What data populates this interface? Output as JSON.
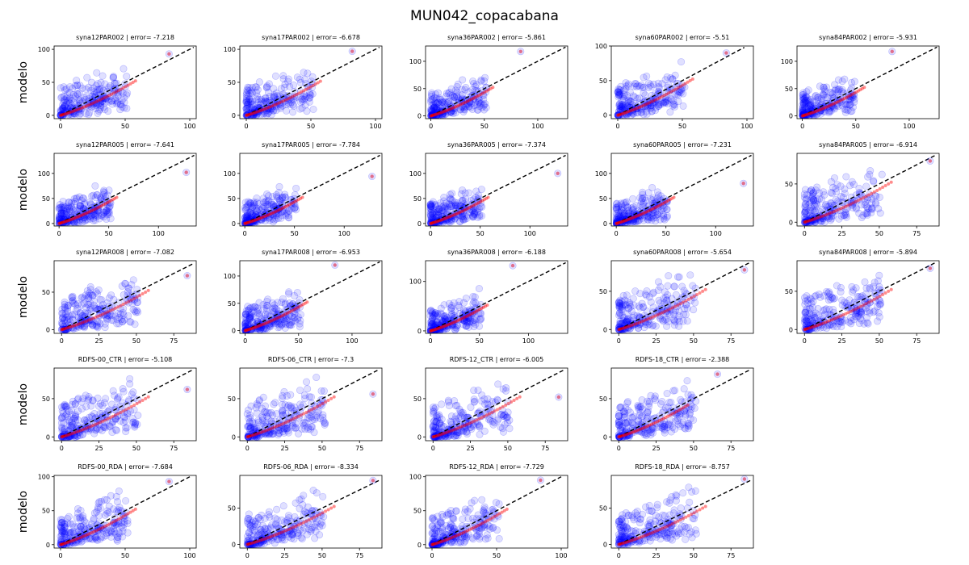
{
  "figure": {
    "title": "MUN042_copacabana",
    "ylabel": "modelo"
  },
  "colors": {
    "scatter": "#0000ff",
    "qq": "#ff0000",
    "identity": "#000000"
  },
  "chart_data": [
    {
      "type": "scatter",
      "title": "syna12PAR002 | error= -7.218",
      "xlim": [
        -5,
        105
      ],
      "ylim": [
        -5,
        105
      ],
      "xticks": [
        0,
        50,
        100
      ],
      "yticks": [
        0,
        50,
        100
      ],
      "outlier": [
        84,
        93
      ],
      "ylabel": "modelo"
    },
    {
      "type": "scatter",
      "title": "syna17PAR002 | error= -6.678",
      "xlim": [
        -5,
        105
      ],
      "ylim": [
        -5,
        105
      ],
      "xticks": [
        0,
        50,
        100
      ],
      "yticks": [
        0,
        50,
        100
      ],
      "outlier": [
        82,
        97
      ]
    },
    {
      "type": "scatter",
      "title": "syna36PAR002 | error= -5.861",
      "xlim": [
        -5,
        128
      ],
      "ylim": [
        -5,
        128
      ],
      "xticks": [
        0,
        50,
        100
      ],
      "yticks": [
        0,
        50,
        100
      ],
      "outlier": [
        84,
        118
      ]
    },
    {
      "type": "scatter",
      "title": "syna60PAR002 | error= -5.51",
      "xlim": [
        -5,
        105
      ],
      "ylim": [
        -5,
        100
      ],
      "xticks": [
        0,
        50,
        100
      ],
      "yticks": [
        0,
        50,
        100
      ],
      "outlier": [
        84,
        90
      ]
    },
    {
      "type": "scatter",
      "title": "syna84PAR002 | error= -5.931",
      "xlim": [
        -5,
        128
      ],
      "ylim": [
        -5,
        128
      ],
      "xticks": [
        0,
        50,
        100
      ],
      "yticks": [
        0,
        50,
        100
      ],
      "outlier": [
        84,
        118
      ]
    },
    {
      "type": "scatter",
      "title": "syna12PAR005 | error= -7.641",
      "xlim": [
        -5,
        138
      ],
      "ylim": [
        -5,
        140
      ],
      "xticks": [
        0,
        50,
        100
      ],
      "yticks": [
        0,
        50,
        100
      ],
      "outlier": [
        128,
        102
      ],
      "ylabel": "modelo"
    },
    {
      "type": "scatter",
      "title": "syna17PAR005 | error= -7.784",
      "xlim": [
        -5,
        138
      ],
      "ylim": [
        -5,
        140
      ],
      "xticks": [
        0,
        50,
        100
      ],
      "yticks": [
        0,
        50,
        100
      ],
      "outlier": [
        128,
        94
      ]
    },
    {
      "type": "scatter",
      "title": "syna36PAR005 | error= -7.374",
      "xlim": [
        -5,
        138
      ],
      "ylim": [
        -5,
        140
      ],
      "xticks": [
        0,
        50,
        100
      ],
      "yticks": [
        0,
        50,
        100
      ],
      "outlier": [
        128,
        100
      ]
    },
    {
      "type": "scatter",
      "title": "syna60PAR005 | error= -7.231",
      "xlim": [
        -5,
        138
      ],
      "ylim": [
        -5,
        140
      ],
      "xticks": [
        0,
        50,
        100
      ],
      "yticks": [
        0,
        50,
        100
      ],
      "outlier": [
        128,
        80
      ]
    },
    {
      "type": "scatter",
      "title": "syna84PAR005 | error= -6.914",
      "xlim": [
        -5,
        90
      ],
      "ylim": [
        -5,
        90
      ],
      "xticks": [
        0,
        25,
        50,
        75
      ],
      "yticks": [
        0,
        50
      ],
      "outlier": [
        84,
        80
      ]
    },
    {
      "type": "scatter",
      "title": "syna12PAR008 | error= -7.082",
      "xlim": [
        -5,
        90
      ],
      "ylim": [
        -5,
        92
      ],
      "xticks": [
        0,
        25,
        50,
        75
      ],
      "yticks": [
        0,
        50
      ],
      "outlier": [
        84,
        72
      ],
      "ylabel": "modelo"
    },
    {
      "type": "scatter",
      "title": "syna17PAR008 | error= -6.953",
      "xlim": [
        -5,
        128
      ],
      "ylim": [
        -5,
        128
      ],
      "xticks": [
        0,
        50,
        100
      ],
      "yticks": [
        0,
        50,
        100
      ],
      "outlier": [
        84,
        120
      ]
    },
    {
      "type": "scatter",
      "title": "syna36PAR008 | error= -6.188",
      "xlim": [
        -5,
        140
      ],
      "ylim": [
        -5,
        142
      ],
      "xticks": [
        0,
        50,
        100
      ],
      "yticks": [
        0,
        100
      ],
      "outlier": [
        84,
        132
      ]
    },
    {
      "type": "scatter",
      "title": "syna60PAR008 | error= -5.654",
      "xlim": [
        -5,
        90
      ],
      "ylim": [
        -5,
        90
      ],
      "xticks": [
        0,
        25,
        50,
        75
      ],
      "yticks": [
        0,
        50
      ],
      "outlier": [
        84,
        78
      ]
    },
    {
      "type": "scatter",
      "title": "syna84PAR008 | error= -5.894",
      "xlim": [
        -5,
        90
      ],
      "ylim": [
        -5,
        90
      ],
      "xticks": [
        0,
        25,
        50,
        75
      ],
      "yticks": [
        0,
        50
      ],
      "outlier": [
        84,
        80
      ]
    },
    {
      "type": "scatter",
      "title": "RDFS-00_CTR | error= -5.108",
      "xlim": [
        -5,
        90
      ],
      "ylim": [
        -5,
        90
      ],
      "xticks": [
        0,
        25,
        50,
        75
      ],
      "yticks": [
        0,
        50
      ],
      "outlier": [
        84,
        62
      ],
      "ylabel": "modelo"
    },
    {
      "type": "scatter",
      "title": "RDFS-06_CTR | error= -7.3",
      "xlim": [
        -5,
        90
      ],
      "ylim": [
        -5,
        90
      ],
      "xticks": [
        0,
        25,
        50,
        75
      ],
      "yticks": [
        0,
        50
      ],
      "outlier": [
        84,
        56
      ]
    },
    {
      "type": "scatter",
      "title": "RDFS-12_CTR | error= -6.005",
      "xlim": [
        -5,
        90
      ],
      "ylim": [
        -5,
        90
      ],
      "xticks": [
        0,
        25,
        50,
        75
      ],
      "yticks": [
        0,
        50
      ],
      "outlier": [
        84,
        52
      ]
    },
    {
      "type": "scatter",
      "title": "RDFS-18_CTR | error= -2.388",
      "xlim": [
        -5,
        90
      ],
      "ylim": [
        -5,
        90
      ],
      "xticks": [
        0,
        25,
        50,
        75
      ],
      "yticks": [
        0,
        50
      ],
      "outlier": [
        66,
        82
      ]
    },
    {
      "type": "scatter",
      "title": "RDFS-00_RDA | error= -7.684",
      "xlim": [
        -5,
        105
      ],
      "ylim": [
        -5,
        102
      ],
      "xticks": [
        0,
        50,
        100
      ],
      "yticks": [
        0,
        50,
        100
      ],
      "outlier": [
        84,
        93
      ],
      "ylabel": "modelo"
    },
    {
      "type": "scatter",
      "title": "RDFS-06_RDA | error= -8.334",
      "xlim": [
        -5,
        90
      ],
      "ylim": [
        -5,
        95
      ],
      "xticks": [
        0,
        25,
        50,
        75
      ],
      "yticks": [
        0,
        50
      ],
      "outlier": [
        84,
        88
      ]
    },
    {
      "type": "scatter",
      "title": "RDFS-12_RDA | error= -7.729",
      "xlim": [
        -5,
        105
      ],
      "ylim": [
        -5,
        102
      ],
      "xticks": [
        0,
        50,
        100
      ],
      "yticks": [
        0,
        50,
        100
      ],
      "outlier": [
        84,
        95
      ]
    },
    {
      "type": "scatter",
      "title": "RDFS-18_RDA | error= -8.757",
      "xlim": [
        -5,
        90
      ],
      "ylim": [
        -5,
        95
      ],
      "xticks": [
        0,
        25,
        50,
        75
      ],
      "yticks": [
        0,
        50
      ],
      "outlier": [
        84,
        90
      ]
    }
  ]
}
